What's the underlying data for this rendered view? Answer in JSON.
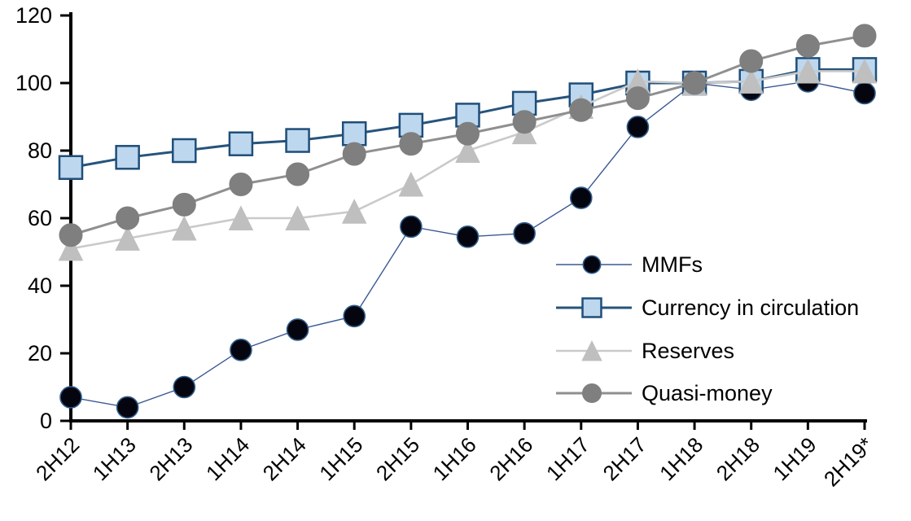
{
  "page": {
    "background": "#ffffff",
    "text_color": "#000000"
  },
  "chart_data": {
    "type": "line",
    "title": "",
    "xlabel": "",
    "ylabel": "",
    "ylim": [
      0,
      120
    ],
    "yticks": [
      0,
      20,
      40,
      60,
      80,
      100,
      120
    ],
    "grid": false,
    "axis_color": "#000000",
    "legend": {
      "position": "inside-right",
      "entries": [
        "MMFs",
        "Currency in circulation",
        "Reserves",
        "Quasi-money"
      ]
    },
    "categories": [
      "2H12",
      "1H13",
      "2H13",
      "1H14",
      "2H14",
      "1H15",
      "2H15",
      "1H16",
      "2H16",
      "1H17",
      "2H17",
      "1H18",
      "2H18",
      "1H19",
      "2H19*"
    ],
    "series": [
      {
        "name": "MMFs",
        "marker": "circle",
        "marker_size": 26,
        "marker_fill": "#05050f",
        "marker_stroke": "#2e5c8a",
        "marker_stroke_width": 1.6,
        "line_color": "#3a5894",
        "line_width": 1.4,
        "values": [
          7,
          4,
          10,
          21,
          27,
          31,
          57.5,
          54.5,
          55.5,
          66,
          87,
          100,
          98,
          100.5,
          97
        ]
      },
      {
        "name": "Currency in circulation",
        "marker": "square",
        "marker_size": 28,
        "marker_fill": "#bdd7ee",
        "marker_stroke": "#1f4e79",
        "marker_stroke_width": 2.5,
        "line_color": "#26547c",
        "line_width": 3,
        "values": [
          75,
          78,
          80,
          82,
          83,
          85,
          87.5,
          90.5,
          94,
          96.5,
          100,
          100,
          100.5,
          104,
          104
        ]
      },
      {
        "name": "Reserves",
        "marker": "triangle",
        "marker_size": 29,
        "marker_fill": "#bfbfbf",
        "marker_stroke": "#bfbfbf",
        "marker_stroke_width": 1,
        "line_color": "#cacaca",
        "line_width": 2.6,
        "values": [
          51,
          54,
          57,
          60,
          60,
          62,
          70,
          80,
          85.5,
          93,
          100.5,
          100,
          100.5,
          103.5,
          103.5
        ]
      },
      {
        "name": "Quasi-money",
        "marker": "circle",
        "marker_size": 28,
        "marker_fill": "#7f7f7f",
        "marker_stroke": "#7f7f7f",
        "marker_stroke_width": 1,
        "line_color": "#8f8f8f",
        "line_width": 3,
        "values": [
          55,
          60,
          64,
          70,
          73,
          79,
          82,
          85,
          88.5,
          92,
          95.5,
          100,
          106.5,
          111,
          114
        ]
      }
    ]
  }
}
